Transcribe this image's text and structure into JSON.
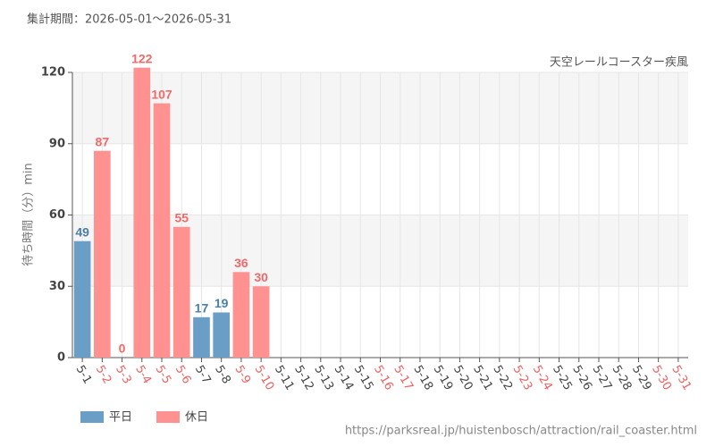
{
  "chart_data": {
    "type": "bar",
    "title": "集計期間：2026-05-01～2026-05-31",
    "subtitle": "天空レールコースター疾風",
    "y_label": "待ち時間（分）min",
    "source": "https://parksreal.jp/huistenbosch/attraction/rail_coaster.html",
    "categories": [
      "5-1",
      "5-2",
      "5-3",
      "5-4",
      "5-5",
      "5-6",
      "5-7",
      "5-8",
      "5-9",
      "5-10",
      "5-11",
      "5-12",
      "5-13",
      "5-14",
      "5-15",
      "5-16",
      "5-17",
      "5-18",
      "5-19",
      "5-20",
      "5-21",
      "5-22",
      "5-23",
      "5-24",
      "5-25",
      "5-26",
      "5-27",
      "5-28",
      "5-29",
      "5-30",
      "5-31"
    ],
    "category_colors": [
      "#444",
      "#f06060",
      "#f06060",
      "#f06060",
      "#f06060",
      "#f06060",
      "#444",
      "#444",
      "#f06060",
      "#f06060",
      "#444",
      "#444",
      "#444",
      "#444",
      "#444",
      "#f06060",
      "#f06060",
      "#444",
      "#444",
      "#444",
      "#444",
      "#444",
      "#f06060",
      "#f06060",
      "#444",
      "#444",
      "#444",
      "#444",
      "#444",
      "#f06060",
      "#f06060"
    ],
    "series": [
      {
        "name": "平日",
        "color": "#6a9ec6",
        "label_color": "#4a7eaa",
        "values": [
          49,
          null,
          null,
          null,
          null,
          null,
          17,
          19,
          null,
          null,
          null,
          null,
          null,
          null,
          null,
          null,
          null,
          null,
          null,
          null,
          null,
          null,
          null,
          null,
          null,
          null,
          null,
          null,
          null,
          null,
          null
        ]
      },
      {
        "name": "休日",
        "color": "#ff9191",
        "label_color": "#f06a6a",
        "values": [
          null,
          87,
          0,
          122,
          107,
          55,
          null,
          null,
          36,
          30,
          null,
          null,
          null,
          null,
          null,
          null,
          null,
          null,
          null,
          null,
          null,
          null,
          null,
          null,
          null,
          null,
          null,
          null,
          null,
          null,
          null
        ]
      }
    ],
    "ylim": [
      0,
      120
    ],
    "yticks": [
      0,
      30,
      60,
      90,
      120
    ],
    "grid": true
  }
}
